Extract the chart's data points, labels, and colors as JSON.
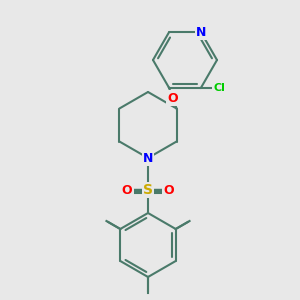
{
  "title": "",
  "background_color": "#e8e8e8",
  "bond_color": "#4a7a6a",
  "atom_colors": {
    "N": "#0000ff",
    "O": "#ff0000",
    "S": "#ccaa00",
    "Cl": "#00cc00",
    "C": "#4a7a6a"
  },
  "figsize": [
    3.0,
    3.0
  ],
  "dpi": 100
}
